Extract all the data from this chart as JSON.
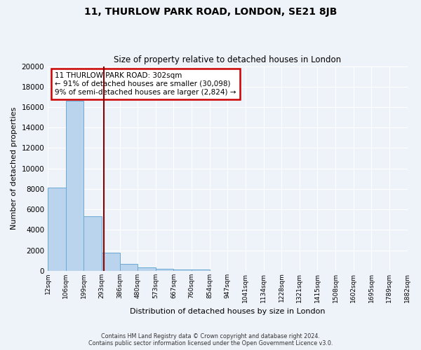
{
  "title": "11, THURLOW PARK ROAD, LONDON, SE21 8JB",
  "subtitle": "Size of property relative to detached houses in London",
  "xlabel": "Distribution of detached houses by size in London",
  "ylabel": "Number of detached properties",
  "bar_heights": [
    8100,
    16600,
    5300,
    1750,
    700,
    300,
    200,
    150,
    100,
    0,
    0,
    0,
    0,
    0,
    0,
    0,
    0,
    0,
    0,
    0
  ],
  "bar_color": "#bad4ed",
  "bar_edge_color": "#6aaad4",
  "x_labels": [
    "12sqm",
    "106sqm",
    "199sqm",
    "293sqm",
    "386sqm",
    "480sqm",
    "573sqm",
    "667sqm",
    "760sqm",
    "854sqm",
    "947sqm",
    "1041sqm",
    "1134sqm",
    "1228sqm",
    "1321sqm",
    "1415sqm",
    "1508sqm",
    "1602sqm",
    "1695sqm",
    "1789sqm",
    "1882sqm"
  ],
  "ylim": [
    0,
    20000
  ],
  "yticks": [
    0,
    2000,
    4000,
    6000,
    8000,
    10000,
    12000,
    14000,
    16000,
    18000,
    20000
  ],
  "vline_color": "#8b0000",
  "annotation_title": "11 THURLOW PARK ROAD: 302sqm",
  "annotation_line1": "← 91% of detached houses are smaller (30,098)",
  "annotation_line2": "9% of semi-detached houses are larger (2,824) →",
  "annotation_box_color": "#cc0000",
  "footer_line1": "Contains HM Land Registry data © Crown copyright and database right 2024.",
  "footer_line2": "Contains public sector information licensed under the Open Government Licence v3.0.",
  "background_color": "#eef2f9",
  "grid_color": "#ffffff"
}
